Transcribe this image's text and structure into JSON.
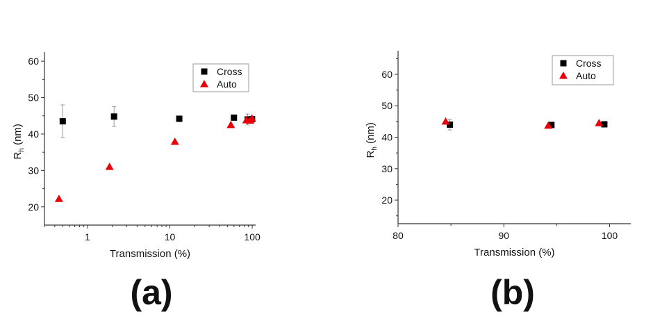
{
  "chart_data": [
    {
      "type": "scatter",
      "panel_label": "(a)",
      "xlabel": "Transmission (%)",
      "ylabel_main": "R",
      "ylabel_sub": "h",
      "ylabel_unit": " (nm)",
      "xscale": "log",
      "xlim": [
        0.3,
        110
      ],
      "ylim": [
        15,
        62.5
      ],
      "xticks": [
        1,
        10,
        100
      ],
      "xtick_labels": [
        "1",
        "10",
        "100"
      ],
      "yticks": [
        20,
        30,
        40,
        50,
        60
      ],
      "ytick_labels": [
        "20",
        "30",
        "40",
        "50",
        "60"
      ],
      "grid": false,
      "legend_position": "top-right",
      "series": [
        {
          "name": "Cross",
          "marker": "square",
          "color": "#000000",
          "points": [
            [
              0.5,
              43.5,
              4.5
            ],
            [
              2.1,
              44.8,
              2.7
            ],
            [
              13,
              44.2,
              0.5
            ],
            [
              60,
              44.5,
              0.6
            ],
            [
              88,
              44,
              1.5
            ],
            [
              95,
              43.8,
              0.6
            ],
            [
              99.5,
              44.1,
              0.5
            ]
          ]
        },
        {
          "name": "Auto",
          "marker": "triangle",
          "color": "#e8000b",
          "points": [
            [
              0.45,
              22.2,
              0
            ],
            [
              1.85,
              31,
              0
            ],
            [
              11.5,
              37.9,
              0
            ],
            [
              55,
              42.5,
              0
            ],
            [
              85,
              43.8,
              0
            ],
            [
              94,
              43.7,
              0
            ],
            [
              99,
              44.3,
              0
            ]
          ]
        }
      ]
    },
    {
      "type": "scatter",
      "panel_label": "(b)",
      "xlabel": "Transmission (%)",
      "ylabel_main": "R",
      "ylabel_sub": "h",
      "ylabel_unit": " (nm)",
      "xscale": "linear",
      "xlim": [
        80,
        102
      ],
      "ylim": [
        12.5,
        67.5
      ],
      "xticks": [
        80,
        90,
        100
      ],
      "xtick_labels": [
        "80",
        "90",
        "100"
      ],
      "yticks": [
        20,
        30,
        40,
        50,
        60
      ],
      "ytick_labels": [
        "20",
        "30",
        "40",
        "50",
        "60"
      ],
      "grid": false,
      "legend_position": "top-right",
      "series": [
        {
          "name": "Cross",
          "marker": "square",
          "color": "#000000",
          "points": [
            [
              84.9,
              44,
              1.7
            ],
            [
              94.5,
              43.9,
              0.5
            ],
            [
              99.5,
              44.1,
              0.4
            ]
          ]
        },
        {
          "name": "Auto",
          "marker": "triangle",
          "color": "#e8000b",
          "points": [
            [
              84.5,
              45,
              0
            ],
            [
              94.2,
              43.7,
              0
            ],
            [
              99,
              44.5,
              0
            ]
          ]
        }
      ]
    }
  ]
}
